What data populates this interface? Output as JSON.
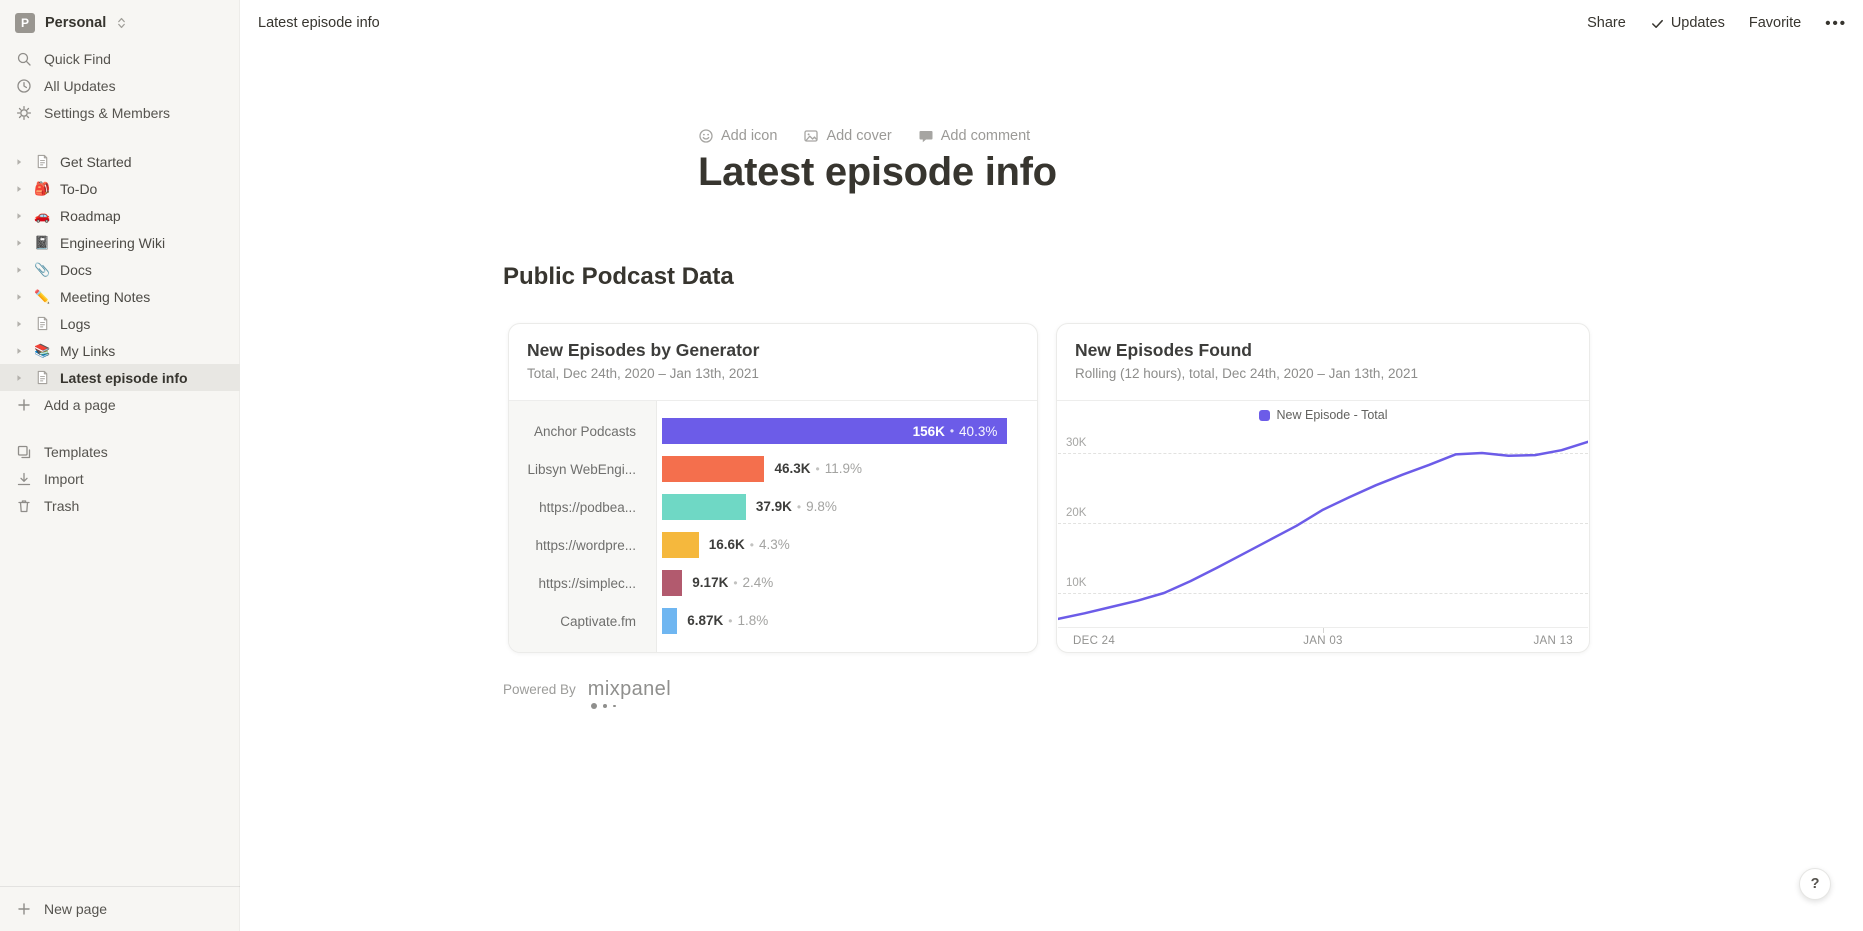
{
  "workspace": {
    "name": "Personal",
    "initial": "P"
  },
  "topbar": {
    "breadcrumb": "Latest episode info",
    "share_label": "Share",
    "updates_label": "Updates",
    "favorite_label": "Favorite",
    "more_label": "•••"
  },
  "sidebar": {
    "menu": [
      {
        "label": "Quick Find",
        "icon": "search"
      },
      {
        "label": "All Updates",
        "icon": "clock"
      },
      {
        "label": "Settings & Members",
        "icon": "gear"
      }
    ],
    "pages": [
      {
        "label": "Get Started",
        "icon": "doc"
      },
      {
        "label": "To-Do",
        "icon": "🎒"
      },
      {
        "label": "Roadmap",
        "icon": "🚗"
      },
      {
        "label": "Engineering Wiki",
        "icon": "📓"
      },
      {
        "label": "Docs",
        "icon": "📎"
      },
      {
        "label": "Meeting Notes",
        "icon": "✏️"
      },
      {
        "label": "Logs",
        "icon": "doc"
      },
      {
        "label": "My Links",
        "icon": "📚"
      },
      {
        "label": "Latest episode info",
        "icon": "doc",
        "selected": true
      }
    ],
    "add_page_label": "Add a page",
    "footer_menu": [
      {
        "label": "Templates",
        "icon": "templates"
      },
      {
        "label": "Import",
        "icon": "import"
      },
      {
        "label": "Trash",
        "icon": "trash"
      }
    ],
    "new_page_label": "New page"
  },
  "page": {
    "add_icon_label": "Add icon",
    "add_cover_label": "Add cover",
    "add_comment_label": "Add comment",
    "title": "Latest episode info",
    "section_heading": "Public Podcast Data",
    "powered_by_label": "Powered By",
    "mixpanel_label": "mixpanel",
    "help_label": "?"
  },
  "chart_data": [
    {
      "type": "bar",
      "orientation": "horizontal",
      "title": "New Episodes by Generator",
      "subtitle": "Total, Dec 24th, 2020 – Jan 13th, 2021",
      "categories": [
        "Anchor Podcasts",
        "Libsyn WebEngi...",
        "https://podbea...",
        "https://wordpre...",
        "https://simplec...",
        "Captivate.fm"
      ],
      "values": [
        156000,
        46300,
        37900,
        16600,
        9170,
        6870
      ],
      "value_labels": [
        "156K",
        "46.3K",
        "37.9K",
        "16.6K",
        "9.17K",
        "6.87K"
      ],
      "pct_labels": [
        "40.3%",
        "11.9%",
        "9.8%",
        "4.3%",
        "2.4%",
        "1.8%"
      ],
      "colors": [
        "#6c5ce8",
        "#f46f4d",
        "#6fd8c5",
        "#f5b83d",
        "#b25a6e",
        "#6fb6f1"
      ],
      "xlim": [
        0,
        168500
      ],
      "grid": false
    },
    {
      "type": "line",
      "title": "New Episodes Found",
      "subtitle": "Rolling (12 hours), total, Dec 24th, 2020 – Jan 13th, 2021",
      "legend": [
        "New Episode - Total"
      ],
      "legend_position": "top-center",
      "line_color": "#6c5ce8",
      "x": [
        "Dec 24",
        "Dec 25",
        "Dec 26",
        "Dec 27",
        "Dec 28",
        "Dec 29",
        "Dec 30",
        "Dec 31",
        "Jan 01",
        "Jan 02",
        "Jan 03",
        "Jan 04",
        "Jan 05",
        "Jan 06",
        "Jan 07",
        "Jan 08",
        "Jan 09",
        "Jan 10",
        "Jan 11",
        "Jan 12",
        "Jan 13"
      ],
      "values": [
        6300,
        7100,
        8000,
        8900,
        10000,
        11700,
        13600,
        15600,
        17600,
        19600,
        21900,
        23700,
        25400,
        26900,
        28300,
        29800,
        30000,
        29600,
        29700,
        30400,
        31600
      ],
      "y_ticks": [
        {
          "value": 10000,
          "label": "10K"
        },
        {
          "value": 20000,
          "label": "20K"
        },
        {
          "value": 30000,
          "label": "30K"
        }
      ],
      "ylim": [
        5000,
        36000
      ],
      "x_tick_labels": [
        "DEC 24",
        "JAN 03",
        "JAN 13"
      ],
      "x_tick_indices": [
        0,
        10,
        20
      ],
      "grid": "horizontal-dashed"
    }
  ]
}
